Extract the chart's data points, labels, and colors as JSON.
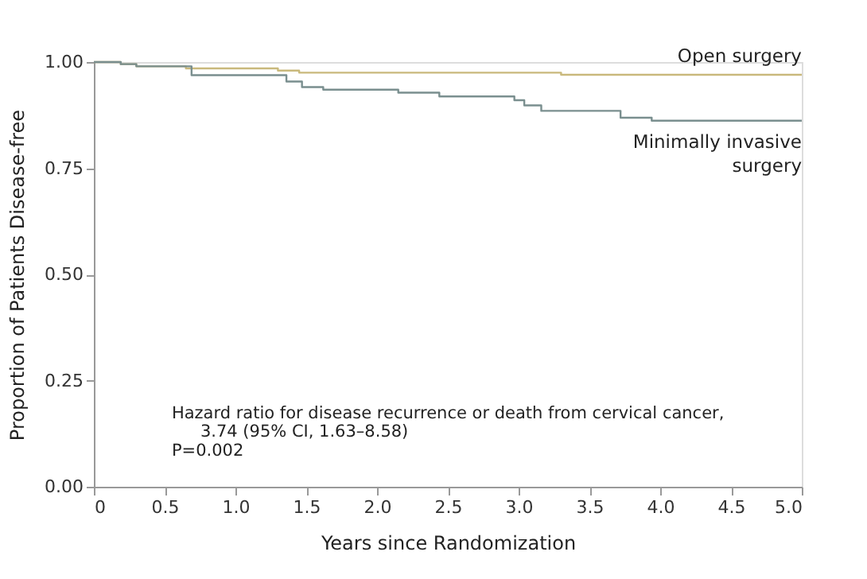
{
  "chart_data": {
    "type": "step",
    "xlabel": "Years since Randomization",
    "ylabel": "Proportion of Patients Disease-free",
    "series": [
      {
        "name": "Open surgery",
        "color": "#c9b97c",
        "x": [
          0,
          0.19,
          0.3,
          0.65,
          1.3,
          1.45,
          3.3,
          5.0
        ],
        "values": [
          1.0,
          0.995,
          0.99,
          0.985,
          0.98,
          0.975,
          0.97,
          0.97
        ]
      },
      {
        "name": "Minimally invasive surgery",
        "color": "#7a8f8f",
        "x": [
          0,
          0.19,
          0.3,
          0.69,
          1.36,
          1.47,
          1.62,
          2.15,
          2.44,
          2.97,
          3.04,
          3.16,
          3.72,
          3.94,
          5.0
        ],
        "values": [
          1.0,
          0.995,
          0.99,
          0.969,
          0.954,
          0.941,
          0.935,
          0.928,
          0.919,
          0.91,
          0.898,
          0.885,
          0.869,
          0.862,
          0.862
        ]
      }
    ],
    "xlim": [
      0,
      5
    ],
    "xticks": [
      0,
      0.5,
      {
        "value": 1,
        "label": "1.0"
      },
      1.5,
      {
        "value": 2,
        "label": "2.0"
      },
      2.5,
      {
        "value": 3,
        "label": "3.0"
      },
      3.5,
      {
        "value": 4,
        "label": "4.0"
      },
      4.5,
      {
        "value": 5,
        "label": "5.0"
      }
    ],
    "ylim": [
      0,
      1
    ],
    "yticks": [
      {
        "value": 0,
        "label": "0.00"
      },
      0.25,
      {
        "value": 0.5,
        "label": "0.50"
      },
      0.75,
      {
        "value": 1,
        "label": "1.00"
      }
    ],
    "grid": false,
    "legend": false,
    "marker": "none",
    "line_style": "solid",
    "annotations": [
      "Hazard ratio for disease recurrence or death from cervical cancer,",
      "3.74 (95% CI, 1.63–8.58)",
      "P=0.002"
    ]
  }
}
